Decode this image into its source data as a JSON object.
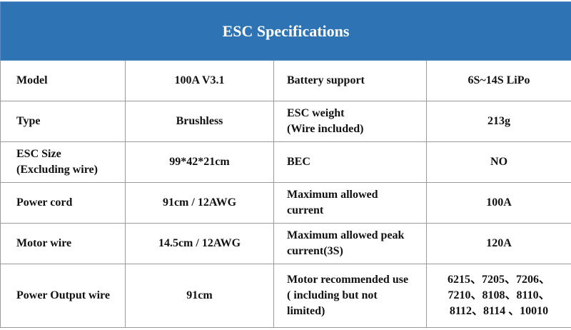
{
  "table": {
    "title": "ESC Specifications",
    "rows": [
      [
        "Model",
        "100A V3.1",
        "Battery support",
        "6S~14S LiPo"
      ],
      [
        "Type",
        "Brushless",
        "ESC weight\n(Wire included)",
        "213g"
      ],
      [
        "ESC Size\n(Excluding wire)",
        "99*42*21cm",
        "BEC",
        "NO"
      ],
      [
        "Power cord",
        "91cm / 12AWG",
        "Maximum allowed\ncurrent",
        "100A"
      ],
      [
        "Motor wire",
        "14.5cm / 12AWG",
        "Maximum allowed peak\ncurrent(3S)",
        "120A"
      ],
      [
        "Power Output wire",
        "91cm",
        "Motor recommended use\n( including but not\nlimited)",
        "6215、7205、7206、\n7210、8108、8110、\n8112、8114 、10010"
      ]
    ]
  }
}
